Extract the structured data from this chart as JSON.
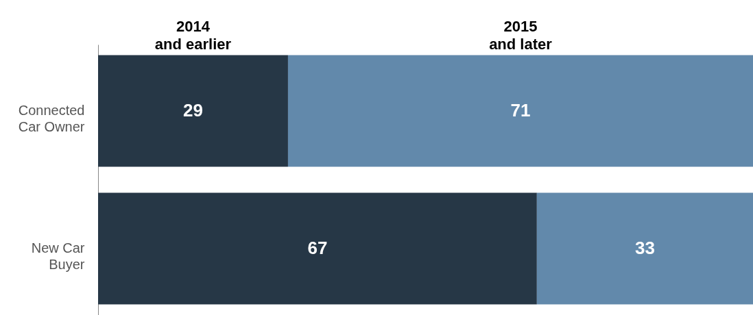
{
  "chart_data": {
    "type": "bar",
    "orientation": "horizontal",
    "stacked": true,
    "categories": [
      "Connected\nCar Owner",
      "New Car\nBuyer"
    ],
    "series": [
      {
        "name": "2014\nand earlier",
        "color": "#263746",
        "values": [
          29,
          67
        ]
      },
      {
        "name": "2015\nand later",
        "color": "#6289ab",
        "values": [
          71,
          33
        ]
      }
    ],
    "xlim": [
      0,
      100
    ],
    "tick_labels": "y",
    "data_labels": true,
    "legend": "top"
  }
}
